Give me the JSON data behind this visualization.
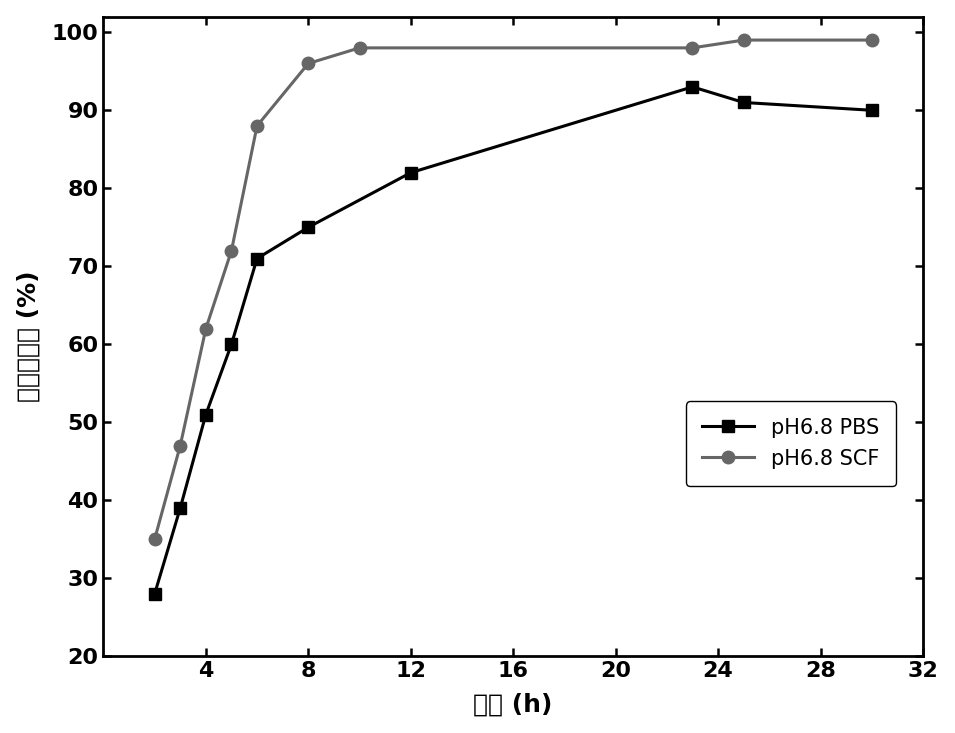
{
  "pbs_x": [
    2,
    3,
    4,
    5,
    6,
    8,
    12,
    23,
    25,
    30
  ],
  "pbs_y": [
    28,
    39,
    51,
    60,
    71,
    75,
    82,
    93,
    91,
    90
  ],
  "scf_x": [
    2,
    3,
    4,
    5,
    6,
    8,
    10,
    23,
    25,
    30
  ],
  "scf_y": [
    35,
    47,
    62,
    72,
    88,
    96,
    98,
    98,
    99,
    99
  ],
  "pbs_color": "#000000",
  "scf_color": "#666666",
  "pbs_label": "pH6.8 PBS",
  "scf_label": "pH6.8 SCF",
  "xlabel": "时间 (h)",
  "ylabel": "累计释放率 (%)",
  "xlim": [
    0,
    32
  ],
  "ylim": [
    20,
    102
  ],
  "xticks": [
    4,
    8,
    12,
    16,
    20,
    24,
    28,
    32
  ],
  "yticks": [
    20,
    30,
    40,
    50,
    60,
    70,
    80,
    90,
    100
  ],
  "linewidth": 2.2,
  "markersize": 9,
  "legend_fontsize": 15,
  "axis_label_fontsize": 18,
  "tick_fontsize": 16
}
